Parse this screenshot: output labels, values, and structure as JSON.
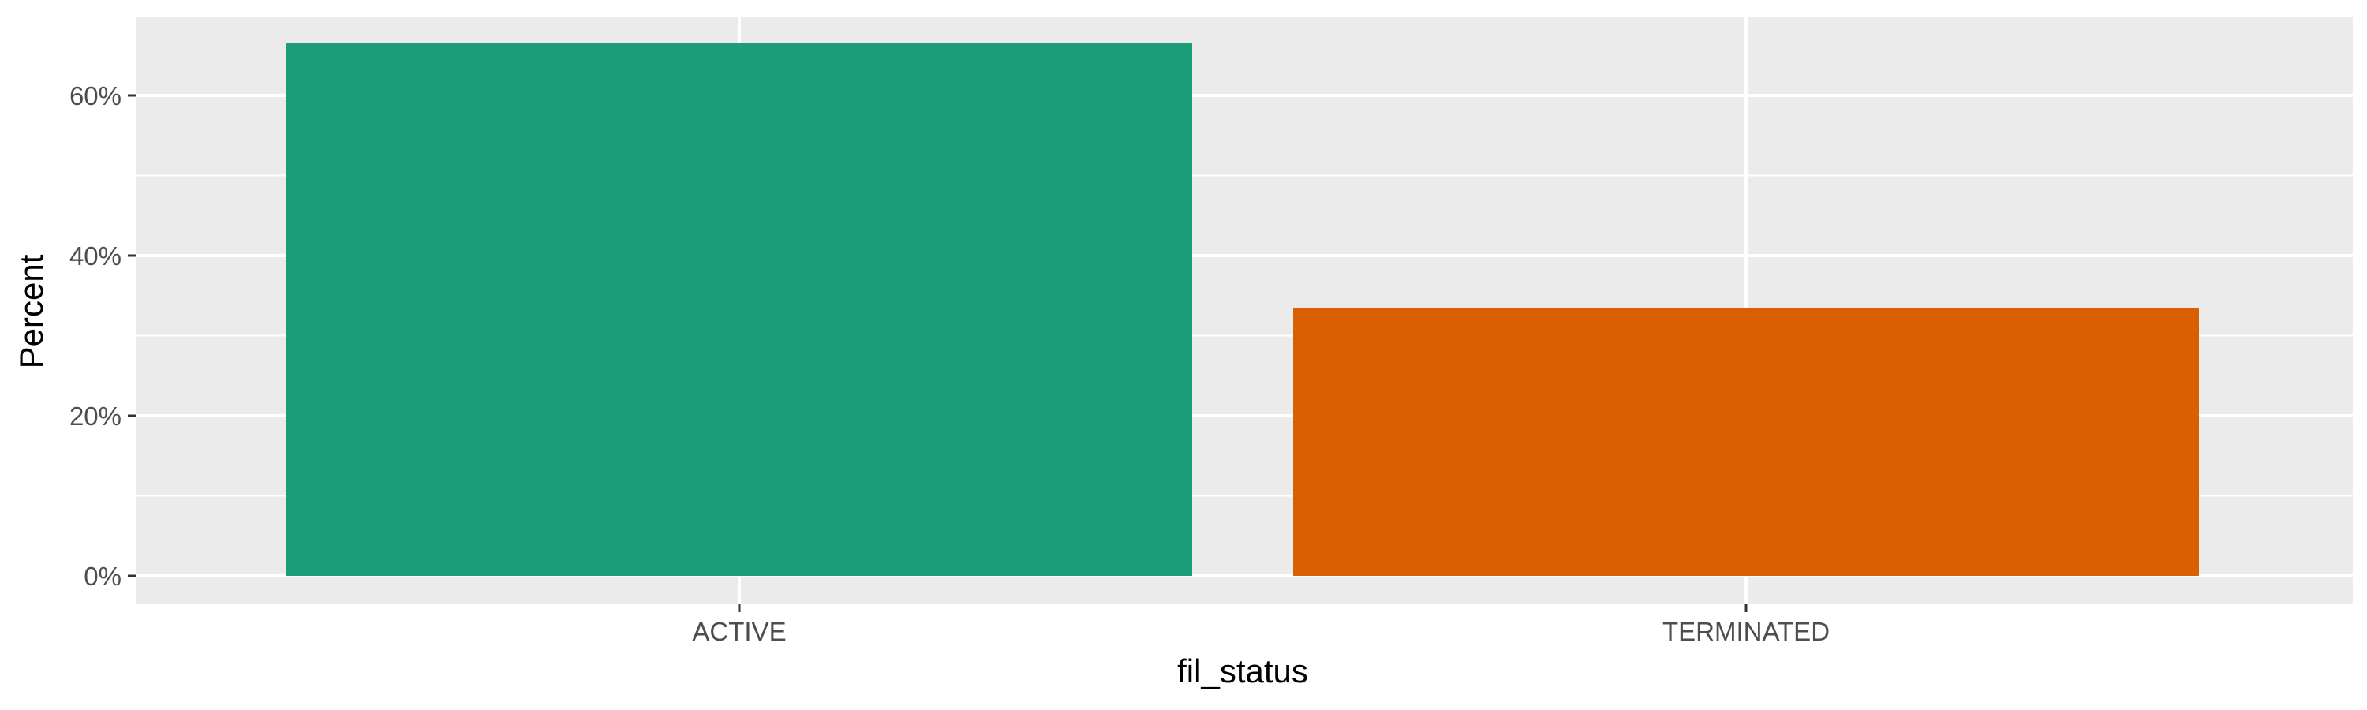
{
  "chart_data": {
    "type": "bar",
    "categories": [
      "ACTIVE",
      "TERMINATED"
    ],
    "values": [
      66.5,
      33.5
    ],
    "value_unit": "%",
    "xlabel": "fil_status",
    "ylabel": "Percent",
    "ylim": [
      0,
      70
    ],
    "yticks": [
      {
        "value": 0,
        "label": "0%"
      },
      {
        "value": 20,
        "label": "20%"
      },
      {
        "value": 40,
        "label": "40%"
      },
      {
        "value": 60,
        "label": "60%"
      }
    ],
    "colors": [
      "#1b9e77",
      "#d95f02"
    ],
    "panel_background": "#ebebeb",
    "grid": true,
    "legend": "none"
  }
}
